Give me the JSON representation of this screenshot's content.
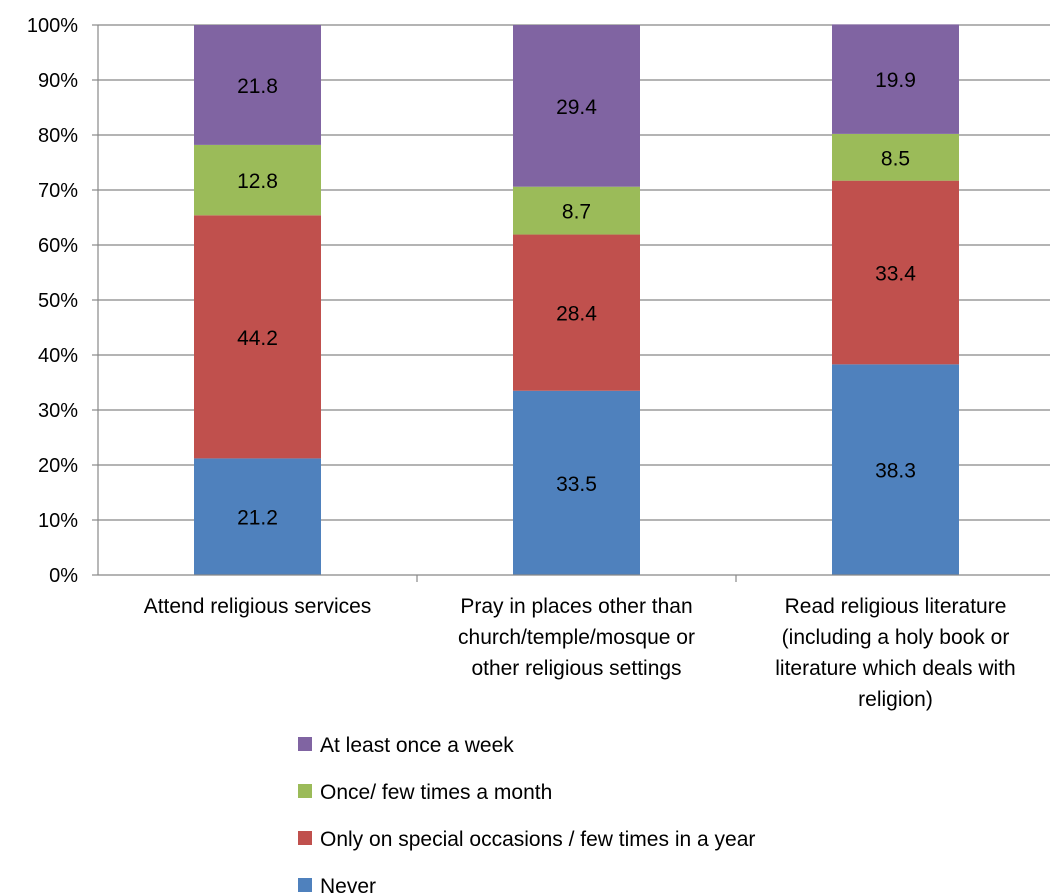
{
  "chart_data": {
    "type": "bar",
    "stacked": true,
    "title": "",
    "xlabel": "",
    "ylabel": "",
    "ylim": [
      0,
      100
    ],
    "y_ticks": [
      "0%",
      "10%",
      "20%",
      "30%",
      "40%",
      "50%",
      "60%",
      "70%",
      "80%",
      "90%",
      "100%"
    ],
    "grid": true,
    "legend_position": "bottom",
    "categories": [
      [
        "Attend religious services"
      ],
      [
        "Pray in places other than",
        "church/temple/mosque or",
        "other religious settings"
      ],
      [
        "Read religious literature",
        "(including a holy book or",
        "literature which deals with",
        "religion)"
      ]
    ],
    "series": [
      {
        "name": "Never",
        "color": "#4F81BD",
        "values": [
          21.2,
          33.5,
          38.3
        ]
      },
      {
        "name": "Only on special occasions / few times in a year",
        "color": "#C0504D",
        "values": [
          44.2,
          28.4,
          33.4
        ]
      },
      {
        "name": "Once/ few times a month",
        "color": "#9BBB59",
        "values": [
          12.8,
          8.7,
          8.5
        ]
      },
      {
        "name": "At least once a week",
        "color": "#8064A2",
        "values": [
          21.8,
          29.4,
          19.9
        ]
      }
    ],
    "legend_order": [
      3,
      2,
      1,
      0
    ]
  }
}
